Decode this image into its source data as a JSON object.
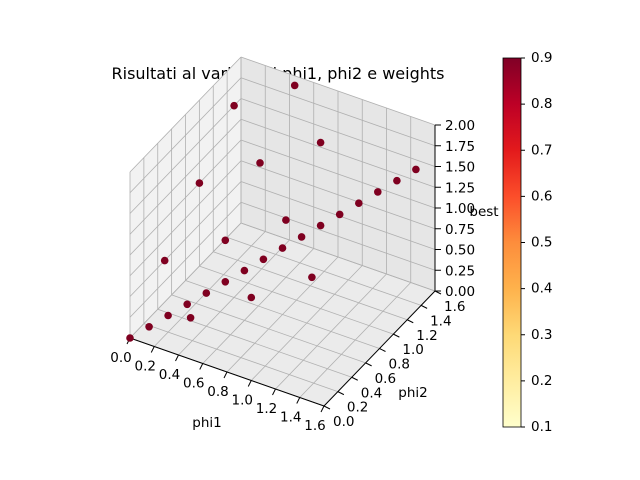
{
  "chart_data": {
    "type": "scatter",
    "title": "Risultati al variare di phi1, phi2 e weights",
    "xlabel": "phi1",
    "ylabel": "phi2",
    "zlabel": "best",
    "xlim": [
      0,
      1.6
    ],
    "ylim": [
      0,
      1.6
    ],
    "zlim": [
      0,
      2.0
    ],
    "x_ticks": [
      "0.0",
      "0.2",
      "0.4",
      "0.6",
      "0.8",
      "1.0",
      "1.2",
      "1.4",
      "1.6"
    ],
    "y_ticks": [
      "0.0",
      "0.2",
      "0.4",
      "0.6",
      "0.8",
      "1.0",
      "1.2",
      "1.4",
      "1.6"
    ],
    "z_ticks": [
      "0.00",
      "0.25",
      "0.50",
      "0.75",
      "1.00",
      "1.25",
      "1.50",
      "1.75",
      "2.00"
    ],
    "grid": true,
    "marker_color": "#7f0020",
    "colorbar": {
      "colormap": "YlOrRd",
      "range": [
        0.1,
        0.9
      ],
      "ticks": [
        "0.1",
        "0.2",
        "0.3",
        "0.4",
        "0.5",
        "0.6",
        "0.7",
        "0.8",
        "0.9"
      ]
    },
    "points": [
      {
        "x": 0.0,
        "y": 0.0,
        "z": 0.0
      },
      {
        "x": 0.1,
        "y": 0.1,
        "z": 0.1
      },
      {
        "x": 0.2,
        "y": 0.2,
        "z": 0.2
      },
      {
        "x": 0.3,
        "y": 0.3,
        "z": 0.3
      },
      {
        "x": 0.4,
        "y": 0.4,
        "z": 0.4
      },
      {
        "x": 0.5,
        "y": 0.5,
        "z": 0.5
      },
      {
        "x": 0.6,
        "y": 0.6,
        "z": 0.6
      },
      {
        "x": 0.7,
        "y": 0.7,
        "z": 0.7
      },
      {
        "x": 0.8,
        "y": 0.8,
        "z": 0.8
      },
      {
        "x": 0.9,
        "y": 0.9,
        "z": 0.9
      },
      {
        "x": 1.0,
        "y": 1.0,
        "z": 1.0
      },
      {
        "x": 1.1,
        "y": 1.1,
        "z": 1.1
      },
      {
        "x": 1.2,
        "y": 1.2,
        "z": 1.2
      },
      {
        "x": 1.3,
        "y": 1.3,
        "z": 1.3
      },
      {
        "x": 1.4,
        "y": 1.4,
        "z": 1.4
      },
      {
        "x": 1.5,
        "y": 1.5,
        "z": 1.5
      },
      {
        "x": 0.5,
        "y": 0.0,
        "z": 0.5
      },
      {
        "x": 1.0,
        "y": 0.0,
        "z": 1.0
      },
      {
        "x": 1.5,
        "y": 0.0,
        "z": 1.5
      },
      {
        "x": 0.5,
        "y": 0.5,
        "z": 1.0
      },
      {
        "x": 1.0,
        "y": 0.5,
        "z": 1.5
      },
      {
        "x": 1.0,
        "y": 1.0,
        "z": 2.0
      },
      {
        "x": 0.0,
        "y": 0.5,
        "z": 0.5
      },
      {
        "x": 0.0,
        "y": 1.0,
        "z": 1.0
      },
      {
        "x": 0.0,
        "y": 1.5,
        "z": 1.5
      },
      {
        "x": 0.5,
        "y": 1.0,
        "z": 1.5
      },
      {
        "x": 0.5,
        "y": 1.5,
        "z": 2.0
      }
    ]
  }
}
